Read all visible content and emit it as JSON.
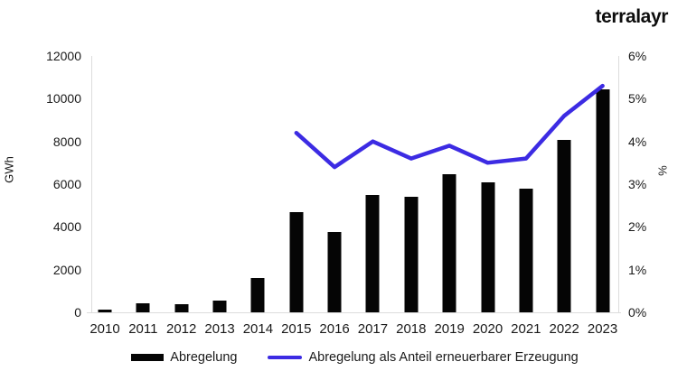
{
  "brand": {
    "name": "terralayr"
  },
  "chart_data": {
    "type": "combo",
    "categories": [
      "2010",
      "2011",
      "2012",
      "2013",
      "2014",
      "2015",
      "2016",
      "2017",
      "2018",
      "2019",
      "2020",
      "2021",
      "2022",
      "2023"
    ],
    "series": [
      {
        "name": "Abregelung",
        "type": "bar",
        "axis": "left",
        "unit": "GWh",
        "color": "#050505",
        "values": [
          130,
          430,
          385,
          550,
          1590,
          4700,
          3750,
          5500,
          5400,
          6450,
          6100,
          5800,
          8050,
          10450
        ]
      },
      {
        "name": "Abregelung als Anteil erneuerbarer Erzeugung",
        "type": "line",
        "axis": "right",
        "unit": "%",
        "color": "#3c2be3",
        "values": [
          null,
          null,
          null,
          null,
          null,
          4.2,
          3.4,
          4.0,
          3.6,
          3.9,
          3.5,
          3.6,
          4.6,
          5.3
        ]
      }
    ],
    "left_axis": {
      "label": "GWh",
      "min": 0,
      "max": 12000,
      "step": 2000,
      "suffix": ""
    },
    "right_axis": {
      "label": "%",
      "min": 0,
      "max": 6,
      "step": 1,
      "suffix": "%"
    },
    "grid": false,
    "legend_position": "bottom"
  },
  "legend": {
    "items": [
      {
        "label": "Abregelung"
      },
      {
        "label": "Abregelung als Anteil erneuerbarer Erzeugung"
      }
    ]
  }
}
